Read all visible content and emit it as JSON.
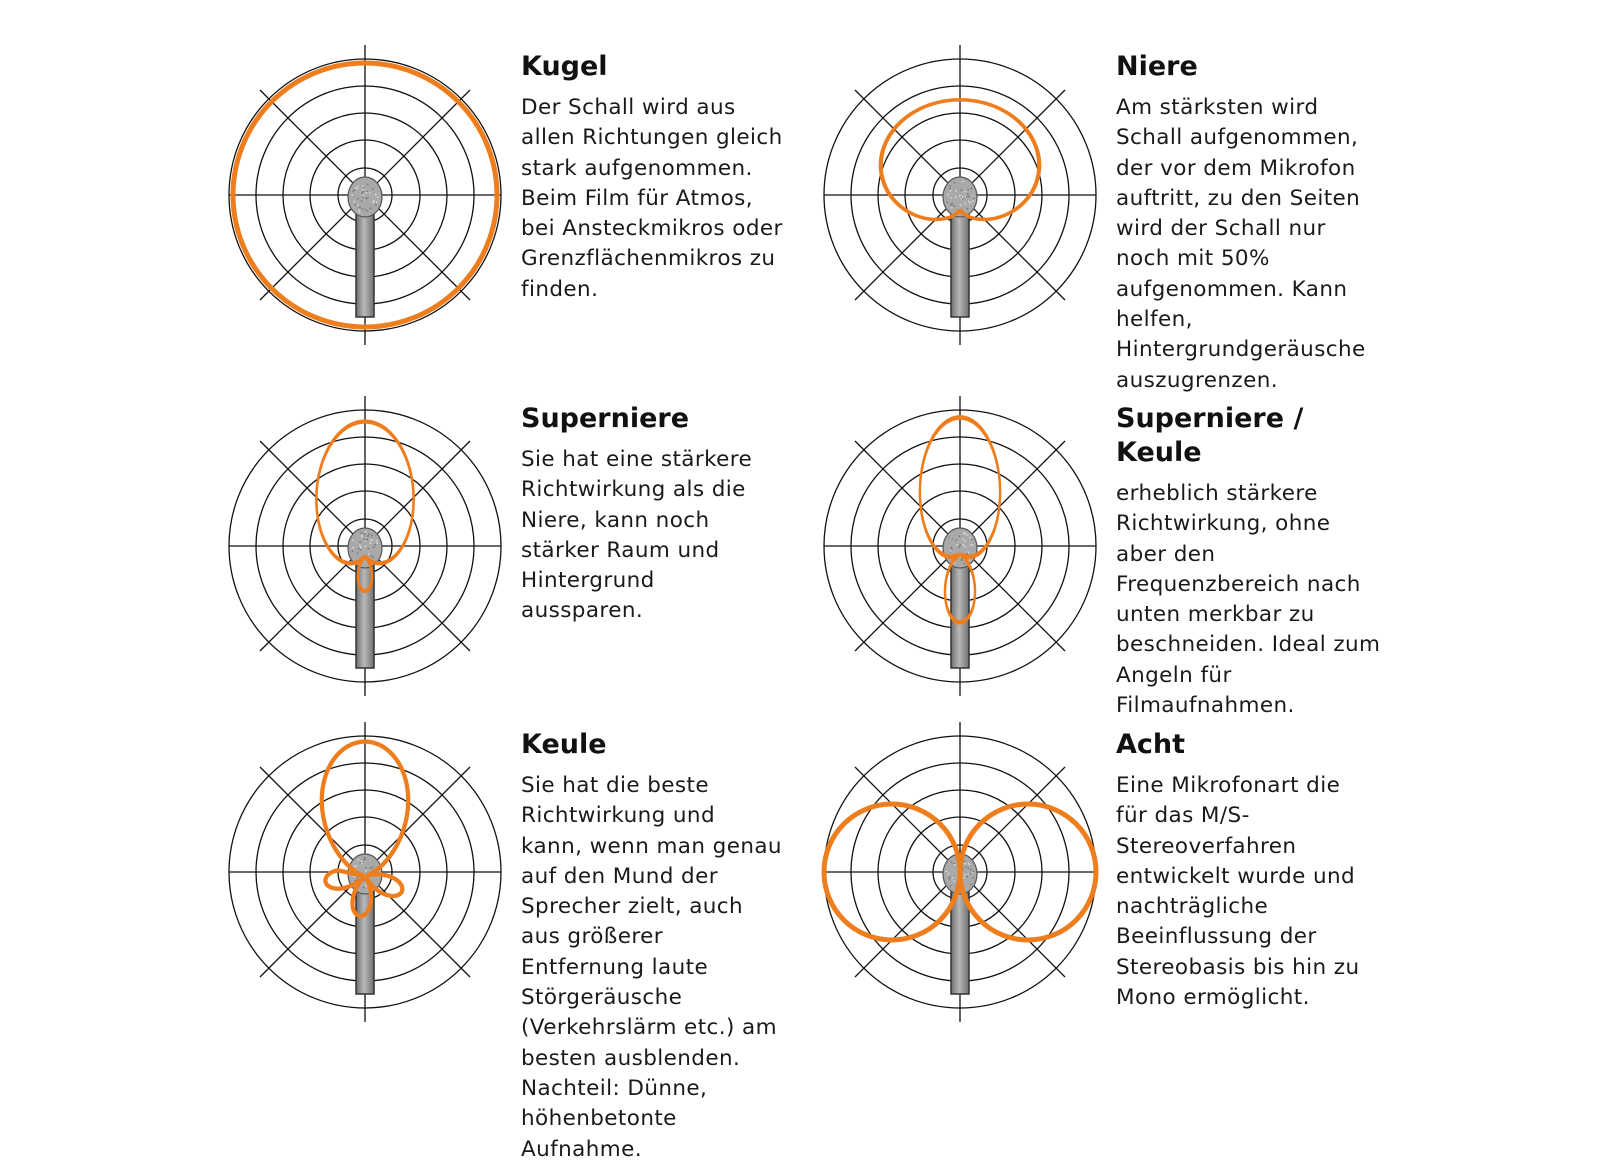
{
  "accent_color": "#ee7d1e",
  "patterns": [
    {
      "id": "kugel",
      "pattern": "omnidirectional",
      "title": "Kugel",
      "description": "Der Schall wird aus allen Richtungen gleich stark aufgenommen. Beim Film für Atmos, bei Ansteckmikros oder Grenzflächenmikros zu finden."
    },
    {
      "id": "niere",
      "pattern": "cardioid",
      "title": "Niere",
      "description": "Am stärksten wird Schall aufgenommen, der vor dem Mikrofon auftritt, zu den Seiten wird der Schall nur noch mit 50% aufgenommen. Kann helfen, Hintergrundgeräusche auszugrenzen."
    },
    {
      "id": "superniere",
      "pattern": "supercardioid",
      "title": "Superniere",
      "description": "Sie hat eine stärkere Richtwirkung als die Niere, kann noch stärker Raum und Hintergrund aussparen."
    },
    {
      "id": "superniere-keule",
      "pattern": "hypercardioid",
      "title": "Superniere / Keule",
      "description": "erheblich stärkere Richtwirkung, ohne aber den Frequenzbereich nach unten merkbar zu beschneiden. Ideal zum Angeln für Filmaufnahmen."
    },
    {
      "id": "keule",
      "pattern": "shotgun",
      "title": "Keule",
      "description": "Sie hat die beste Richtwirkung und kann, wenn man genau auf den Mund der Sprecher zielt, auch aus größerer Entfernung laute Störgeräusche (Verkehrslärm etc.) am besten ausblenden. Nachteil: Dünne, höhenbetonte Aufnahme."
    },
    {
      "id": "acht",
      "pattern": "figure-eight",
      "title": "Acht",
      "description": "Eine Mikrofonart die für das M/S-Stereoverfahren entwickelt wurde und nachträgliche Beeinflussung der Stereobasis bis hin zu Mono ermöglicht."
    }
  ]
}
